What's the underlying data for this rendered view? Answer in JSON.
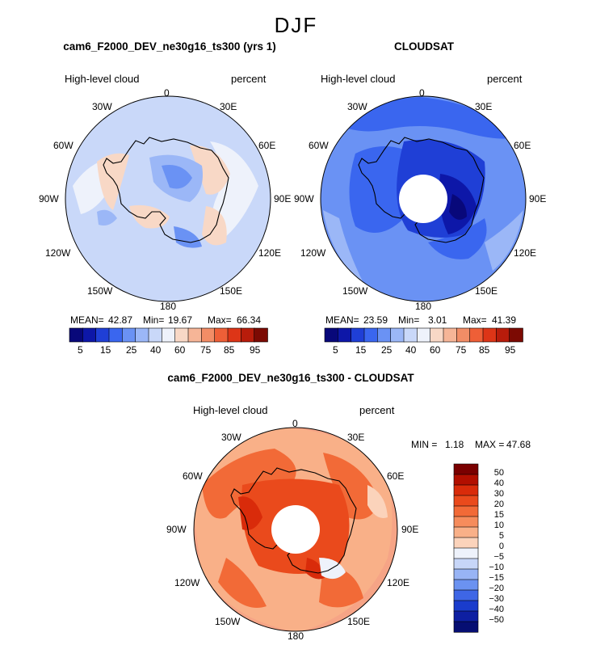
{
  "season": "DJF",
  "panels": [
    {
      "title": "cam6_F2000_DEV_ne30g16_ts300 (yrs 1)",
      "left_label": "High-level cloud",
      "right_label": "percent",
      "lon_labels": [
        "0",
        "30E",
        "60E",
        "90E",
        "120E",
        "150E",
        "180",
        "150W",
        "120W",
        "90W",
        "60W",
        "30W"
      ],
      "mean_label": "MEAN=",
      "mean": "42.87",
      "min_label": "Min=",
      "min": "19.67",
      "max_label": "Max=",
      "max": "66.34",
      "cb_ticks": [
        "5",
        "15",
        "25",
        "40",
        "60",
        "75",
        "85",
        "95"
      ]
    },
    {
      "title": "CLOUDSAT",
      "left_label": "High-level cloud",
      "right_label": "percent",
      "lon_labels": [
        "0",
        "30E",
        "60E",
        "90E",
        "120E",
        "150E",
        "180",
        "150W",
        "120W",
        "90W",
        "60W",
        "30W"
      ],
      "mean_label": "MEAN=",
      "mean": "23.59",
      "min_label": "Min=",
      "min": "3.01",
      "max_label": "Max=",
      "max": "41.39",
      "cb_ticks": [
        "5",
        "15",
        "25",
        "40",
        "60",
        "75",
        "85",
        "95"
      ]
    },
    {
      "title": "cam6_F2000_DEV_ne30g16_ts300 - CLOUDSAT",
      "left_label": "High-level cloud",
      "right_label": "percent",
      "lon_labels": [
        "0",
        "30E",
        "60E",
        "90E",
        "120E",
        "150E",
        "180",
        "150W",
        "120W",
        "90W",
        "60W",
        "30W"
      ],
      "min_label": "MIN =",
      "min": "1.18",
      "max_label": "MAX =",
      "max": "47.68",
      "cb_ticks": [
        "50",
        "40",
        "30",
        "20",
        "15",
        "10",
        "5",
        "0",
        "−5",
        "−10",
        "−15",
        "−20",
        "−30",
        "−40",
        "−50"
      ]
    }
  ],
  "colors": {
    "abs_scale": [
      "#08087a",
      "#0d17a8",
      "#1f3fd6",
      "#3a66ef",
      "#6a92f4",
      "#9bb7f7",
      "#c9d8f9",
      "#eef2fb",
      "#f8d8c6",
      "#f6b597",
      "#f28d66",
      "#ee5f37",
      "#dd3517",
      "#b81c0b",
      "#7c0a03"
    ],
    "diff_scale": [
      "#7a0000",
      "#b20f00",
      "#d92b0a",
      "#ea4a1c",
      "#f26a37",
      "#f68c5c",
      "#f9b088",
      "#fbd3bb",
      "#eef2fb",
      "#c7d6f8",
      "#98b4f5",
      "#6b92f1",
      "#3e66e6",
      "#1a3ccc",
      "#0e1fa2",
      "#060e72"
    ],
    "ocean_model": "#c9d8f9",
    "ocean_cloudsat": "#4f7bef",
    "ocean_diff": "#f6a486",
    "coast": "#000000"
  }
}
